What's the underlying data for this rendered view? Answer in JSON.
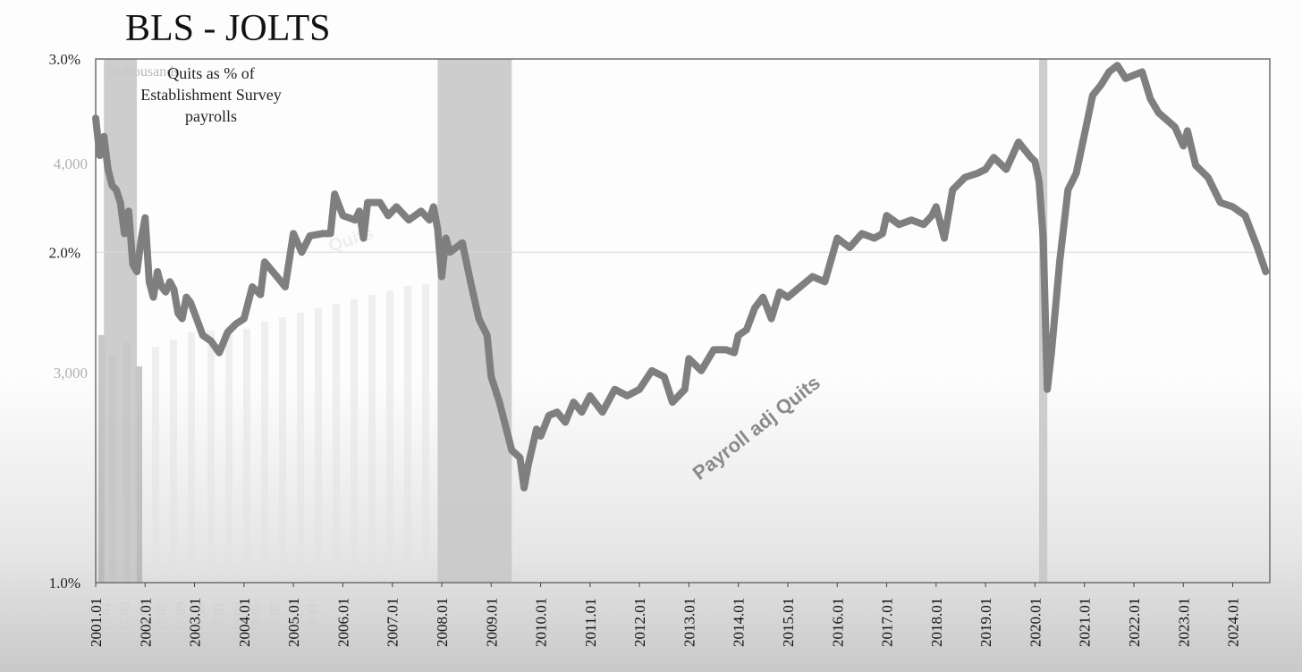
{
  "title": "BLS - JOLTS",
  "chart_data": {
    "type": "line",
    "title": "BLS - JOLTS",
    "annotation": [
      "Quits as % of",
      "Establishment Survey",
      "payrolls"
    ],
    "series": [
      {
        "name": "Payroll adj Quits",
        "color": "#7f7f7f",
        "points": [
          [
            "2001-01",
            2.65
          ],
          [
            "2001-02",
            2.45
          ],
          [
            "2001-03",
            2.55
          ],
          [
            "2001-04",
            2.38
          ],
          [
            "2001-05",
            2.3
          ],
          [
            "2001-06",
            2.28
          ],
          [
            "2001-07",
            2.22
          ],
          [
            "2001-08",
            2.08
          ],
          [
            "2001-09",
            2.18
          ],
          [
            "2001-10",
            1.95
          ],
          [
            "2001-11",
            1.92
          ],
          [
            "2001-12",
            2.05
          ],
          [
            "2002-01",
            2.15
          ],
          [
            "2002-02",
            1.88
          ],
          [
            "2002-03",
            1.82
          ],
          [
            "2002-04",
            1.92
          ],
          [
            "2002-05",
            1.86
          ],
          [
            "2002-06",
            1.84
          ],
          [
            "2002-07",
            1.88
          ],
          [
            "2002-08",
            1.85
          ],
          [
            "2002-09",
            1.76
          ],
          [
            "2002-10",
            1.74
          ],
          [
            "2002-11",
            1.82
          ],
          [
            "2002-12",
            1.8
          ],
          [
            "2003-01",
            1.76
          ],
          [
            "2003-03",
            1.68
          ],
          [
            "2003-05",
            1.66
          ],
          [
            "2003-07",
            1.62
          ],
          [
            "2003-09",
            1.69
          ],
          [
            "2003-11",
            1.72
          ],
          [
            "2004-01",
            1.74
          ],
          [
            "2004-03",
            1.86
          ],
          [
            "2004-05",
            1.83
          ],
          [
            "2004-06",
            1.96
          ],
          [
            "2004-09",
            1.9
          ],
          [
            "2004-11",
            1.86
          ],
          [
            "2005-01",
            2.08
          ],
          [
            "2005-03",
            2.0
          ],
          [
            "2005-05",
            2.07
          ],
          [
            "2005-08",
            2.08
          ],
          [
            "2005-10",
            2.08
          ],
          [
            "2005-11",
            2.26
          ],
          [
            "2006-01",
            2.16
          ],
          [
            "2006-04",
            2.14
          ],
          [
            "2006-05",
            2.18
          ],
          [
            "2006-06",
            2.06
          ],
          [
            "2006-07",
            2.22
          ],
          [
            "2006-10",
            2.22
          ],
          [
            "2006-12",
            2.16
          ],
          [
            "2007-02",
            2.2
          ],
          [
            "2007-05",
            2.14
          ],
          [
            "2007-08",
            2.18
          ],
          [
            "2007-10",
            2.14
          ],
          [
            "2007-11",
            2.2
          ],
          [
            "2007-12",
            2.1
          ],
          [
            "2008-01",
            1.9
          ],
          [
            "2008-02",
            2.06
          ],
          [
            "2008-03",
            2.0
          ],
          [
            "2008-06",
            2.04
          ],
          [
            "2008-08",
            1.88
          ],
          [
            "2008-10",
            1.74
          ],
          [
            "2008-12",
            1.68
          ],
          [
            "2009-01",
            1.54
          ],
          [
            "2009-03",
            1.46
          ],
          [
            "2009-06",
            1.32
          ],
          [
            "2009-08",
            1.3
          ],
          [
            "2009-09",
            1.22
          ],
          [
            "2009-10",
            1.28
          ],
          [
            "2009-12",
            1.38
          ],
          [
            "2010-01",
            1.36
          ],
          [
            "2010-03",
            1.42
          ],
          [
            "2010-05",
            1.43
          ],
          [
            "2010-07",
            1.4
          ],
          [
            "2010-09",
            1.46
          ],
          [
            "2010-11",
            1.43
          ],
          [
            "2011-01",
            1.48
          ],
          [
            "2011-04",
            1.43
          ],
          [
            "2011-07",
            1.5
          ],
          [
            "2011-10",
            1.48
          ],
          [
            "2012-01",
            1.5
          ],
          [
            "2012-04",
            1.56
          ],
          [
            "2012-07",
            1.54
          ],
          [
            "2012-09",
            1.46
          ],
          [
            "2012-12",
            1.5
          ],
          [
            "2013-01",
            1.6
          ],
          [
            "2013-04",
            1.56
          ],
          [
            "2013-07",
            1.63
          ],
          [
            "2013-10",
            1.63
          ],
          [
            "2013-12",
            1.62
          ],
          [
            "2014-01",
            1.68
          ],
          [
            "2014-03",
            1.7
          ],
          [
            "2014-05",
            1.78
          ],
          [
            "2014-07",
            1.82
          ],
          [
            "2014-09",
            1.74
          ],
          [
            "2014-11",
            1.84
          ],
          [
            "2015-01",
            1.82
          ],
          [
            "2015-04",
            1.86
          ],
          [
            "2015-07",
            1.9
          ],
          [
            "2015-10",
            1.88
          ],
          [
            "2016-01",
            2.06
          ],
          [
            "2016-04",
            2.02
          ],
          [
            "2016-07",
            2.08
          ],
          [
            "2016-10",
            2.06
          ],
          [
            "2016-12",
            2.08
          ],
          [
            "2017-01",
            2.16
          ],
          [
            "2017-04",
            2.12
          ],
          [
            "2017-07",
            2.14
          ],
          [
            "2017-10",
            2.12
          ],
          [
            "2017-12",
            2.16
          ],
          [
            "2018-01",
            2.2
          ],
          [
            "2018-03",
            2.06
          ],
          [
            "2018-05",
            2.28
          ],
          [
            "2018-08",
            2.34
          ],
          [
            "2018-11",
            2.36
          ],
          [
            "2019-01",
            2.38
          ],
          [
            "2019-03",
            2.44
          ],
          [
            "2019-06",
            2.38
          ],
          [
            "2019-09",
            2.52
          ],
          [
            "2019-12",
            2.44
          ],
          [
            "2020-01",
            2.42
          ],
          [
            "2020-02",
            2.32
          ],
          [
            "2020-03",
            2.06
          ],
          [
            "2020-04",
            1.5
          ],
          [
            "2020-05",
            1.62
          ],
          [
            "2020-07",
            1.96
          ],
          [
            "2020-09",
            2.28
          ],
          [
            "2020-11",
            2.36
          ],
          [
            "2021-01",
            2.56
          ],
          [
            "2021-03",
            2.78
          ],
          [
            "2021-05",
            2.84
          ],
          [
            "2021-07",
            2.92
          ],
          [
            "2021-09",
            2.96
          ],
          [
            "2021-11",
            2.88
          ],
          [
            "2022-01",
            2.9
          ],
          [
            "2022-03",
            2.92
          ],
          [
            "2022-05",
            2.76
          ],
          [
            "2022-07",
            2.68
          ],
          [
            "2022-09",
            2.64
          ],
          [
            "2022-11",
            2.6
          ],
          [
            "2023-01",
            2.5
          ],
          [
            "2023-02",
            2.58
          ],
          [
            "2023-04",
            2.4
          ],
          [
            "2023-07",
            2.34
          ],
          [
            "2023-10",
            2.22
          ],
          [
            "2024-01",
            2.2
          ],
          [
            "2024-04",
            2.16
          ],
          [
            "2024-07",
            2.02
          ],
          [
            "2024-09",
            1.92
          ]
        ]
      }
    ],
    "recessions": [
      [
        "2001-03",
        "2001-11"
      ],
      [
        "2007-12",
        "2009-06"
      ],
      [
        "2020-02",
        "2020-04"
      ]
    ],
    "recession_color": "#c8c8c8",
    "yaxis": {
      "scale": "log",
      "ylim": [
        1.0,
        3.0
      ],
      "ticks": [
        1.0,
        2.0,
        3.0
      ],
      "tick_labels": [
        "1.0%",
        "2.0%",
        "3.0%"
      ]
    },
    "xaxis": {
      "xlim": [
        "2001-01",
        "2024-10"
      ],
      "tick_labels": [
        "2001.01",
        "2002.01",
        "2003.01",
        "2004.01",
        "2005.01",
        "2006.01",
        "2007.01",
        "2008.01",
        "2009.01",
        "2010.01",
        "2011.01",
        "2012.01",
        "2013.01",
        "2014.01",
        "2015.01",
        "2016.01",
        "2017.01",
        "2018.01",
        "2019.01",
        "2020.01",
        "2021.01",
        "2022.01",
        "2023.01",
        "2024.01"
      ]
    },
    "grid": "horizontal at 2.0%",
    "ghost_overlay": {
      "text": "in thousands",
      "series_label": "Quits",
      "ytick_labels": [
        "4,000",
        "3,000"
      ],
      "xtick_labels": [
        "2017.01",
        "2017.03",
        "2017.05",
        "2017.07",
        "2017.09",
        "2017.11",
        "2018.01",
        "2018.03",
        "2018.05",
        "2018.07",
        "2018.09",
        "2018.11"
      ]
    }
  }
}
